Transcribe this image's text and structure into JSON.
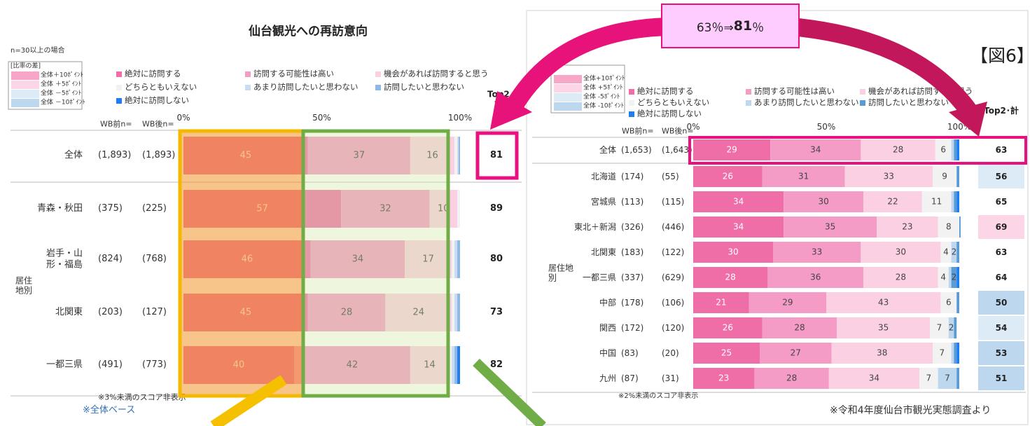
{
  "figure_label": "【図6】",
  "callout": {
    "before": "63％⇒",
    "highlight": "81",
    "after": "％"
  },
  "source_note": "※令和4年度仙台市観光実態調査より",
  "chart_data": [
    {
      "type": "bar",
      "stacked": true,
      "horizontal": true,
      "title": "仙台観光への再訪意向",
      "sample_note": "n=30以上の場合",
      "diff_legend": {
        "title": "[比率の差]",
        "items": [
          {
            "label": "全体＋10ﾎﾟｲﾝﾄ",
            "color": "#f7a6c8"
          },
          {
            "label": "全体 ＋5ﾎﾟｲﾝﾄ",
            "color": "#fcd5e6"
          },
          {
            "label": "全体 －5ﾎﾟｲﾝﾄ",
            "color": "#ddebf7"
          },
          {
            "label": "全体 －10ﾎﾟｲﾝﾄ",
            "color": "#bdd7ee"
          }
        ]
      },
      "n_before_label": "WB前n=",
      "n_after_label": "WB後n=",
      "top2_label": "Top2・計",
      "group_label": "居住地別",
      "categories": [
        "全体",
        "青森・秋田",
        "岩手・山形・福島",
        "北関東",
        "一都三県"
      ],
      "n_before": [
        "(1,893)",
        "(375)",
        "(824)",
        "(203)",
        "(491)"
      ],
      "n_after": [
        "(1,893)",
        "(225)",
        "(768)",
        "(127)",
        "(773)"
      ],
      "top2": [
        81,
        89,
        80,
        73,
        82
      ],
      "top2_colors": [
        "#ffffff",
        "#ffffff",
        "#ffffff",
        "#ffffff",
        "#ffffff"
      ],
      "series": [
        {
          "name": "絶対に訪問する",
          "color": "#f06ea8",
          "values": [
            45,
            57,
            46,
            45,
            40
          ]
        },
        {
          "name": "訪問する可能性は高い",
          "color": "#f59cc6",
          "values": [
            37,
            32,
            34,
            28,
            42
          ]
        },
        {
          "name": "機会があれば訪問すると思う",
          "color": "#fbd0e3",
          "values": [
            16,
            10,
            17,
            24,
            14
          ]
        },
        {
          "name": "どちらともいえない",
          "color": "#f2f2f2",
          "values": [
            1,
            1,
            1,
            1,
            1
          ]
        },
        {
          "name": "あまり訪問したいと思わない",
          "color": "#c9dcf0",
          "values": [
            0.5,
            0,
            1,
            1,
            1
          ]
        },
        {
          "name": "訪問したいと思わない",
          "color": "#8db8e8",
          "values": [
            0.5,
            0,
            1,
            1,
            1
          ]
        },
        {
          "name": "絶対に訪問しない",
          "color": "#1e7ef0",
          "values": [
            0,
            0,
            0,
            0,
            1
          ]
        }
      ],
      "xlim": [
        0,
        100
      ],
      "xticks": [
        {
          "value": 0,
          "label": "0%"
        },
        {
          "value": 50,
          "label": "50%"
        },
        {
          "value": 100,
          "label": "100%"
        }
      ],
      "notes": [
        "※3%未満のスコア非表示",
        "※全体ベース"
      ]
    },
    {
      "type": "bar",
      "stacked": true,
      "horizontal": true,
      "diff_legend": {
        "items": [
          {
            "label": "全体+10ﾎﾟｲﾝﾄ",
            "color": "#f7a6c8"
          },
          {
            "label": "全体 +5ﾎﾟｲﾝﾄ",
            "color": "#fcd5e6"
          },
          {
            "label": "全体 -5ﾎﾟｲﾝﾄ",
            "color": "#ddebf7"
          },
          {
            "label": "全体 -10ﾎﾟｲﾝﾄ",
            "color": "#bdd7ee"
          }
        ]
      },
      "n_before_label": "WB前n=",
      "n_after_label": "WB後n=",
      "top2_label": "Top2･計",
      "group_label": "居住地別",
      "categories": [
        "全体",
        "北海道",
        "宮城県",
        "東北＋新潟",
        "北関東",
        "一都三県",
        "中部",
        "関西",
        "中国",
        "九州"
      ],
      "n_before": [
        "(1,653)",
        "(174)",
        "(113)",
        "(326)",
        "(183)",
        "(337)",
        "(178)",
        "(172)",
        "(83)",
        "(87)"
      ],
      "n_after": [
        "(1,643)",
        "(55)",
        "(115)",
        "(446)",
        "(122)",
        "(629)",
        "(106)",
        "(120)",
        "(20)",
        "(31)"
      ],
      "top2": [
        63,
        56,
        65,
        69,
        63,
        64,
        50,
        54,
        53,
        51
      ],
      "top2_colors": [
        "#ffffff",
        "#ddebf7",
        "#ffffff",
        "#fcd5e6",
        "#ffffff",
        "#ffffff",
        "#bdd7ee",
        "#ddebf7",
        "#bdd7ee",
        "#bdd7ee"
      ],
      "series": [
        {
          "name": "絶対に訪問する",
          "color": "#f06ea8",
          "values": [
            29,
            26,
            34,
            34,
            30,
            28,
            21,
            26,
            25,
            23
          ]
        },
        {
          "name": "訪問する可能性は高い",
          "color": "#f59cc6",
          "values": [
            34,
            31,
            30,
            35,
            33,
            36,
            29,
            28,
            27,
            28
          ]
        },
        {
          "name": "機会があれば訪問すると思う",
          "color": "#fbd0e3",
          "values": [
            28,
            33,
            22,
            23,
            30,
            28,
            43,
            35,
            38,
            34
          ]
        },
        {
          "name": "どちらともいえない",
          "color": "#f2f2f2",
          "values": [
            6,
            9,
            11,
            8,
            4,
            4,
            6,
            7,
            7,
            7
          ]
        },
        {
          "name": "あまり訪問したいと思わない",
          "color": "#bdd7ee",
          "values": [
            1,
            0,
            1,
            0,
            2,
            1,
            0,
            2,
            1,
            7
          ]
        },
        {
          "name": "訪問したいと思わない",
          "color": "#5b9bd5",
          "values": [
            1,
            1,
            1,
            0.5,
            1,
            2,
            1,
            1,
            1,
            1
          ]
        },
        {
          "name": "絶対に訪問しない",
          "color": "#1e7ef0",
          "values": [
            1,
            0,
            1,
            0,
            0,
            1,
            0,
            0,
            1,
            0
          ]
        }
      ],
      "xlim": [
        0,
        100
      ],
      "xticks": [
        {
          "value": 0,
          "label": "0%"
        },
        {
          "value": 50,
          "label": "50%"
        },
        {
          "value": 100,
          "label": "100%"
        }
      ],
      "notes": [
        "※2%未満のスコア非表示"
      ]
    }
  ]
}
